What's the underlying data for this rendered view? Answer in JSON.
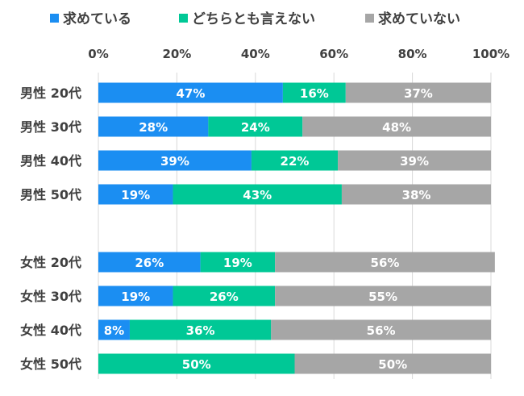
{
  "chart_data": {
    "type": "bar",
    "orientation": "horizontal",
    "stacked": true,
    "percent_stacked": true,
    "legend_position": "top",
    "grid": true,
    "xlim": [
      0,
      100
    ],
    "x_ticks": [
      "0%",
      "20%",
      "40%",
      "60%",
      "80%",
      "100%"
    ],
    "categories": [
      "男性 20代",
      "男性 30代",
      "男性 40代",
      "男性 50代",
      "",
      "女性 20代",
      "女性 30代",
      "女性 40代",
      "女性 50代"
    ],
    "series": [
      {
        "name": "求めている",
        "color": "#1b8ef2",
        "values": [
          47,
          28,
          39,
          19,
          null,
          26,
          19,
          8,
          0
        ]
      },
      {
        "name": "どちらとも言えない",
        "color": "#00c896",
        "values": [
          16,
          24,
          22,
          43,
          null,
          19,
          26,
          36,
          50
        ]
      },
      {
        "name": "求めていない",
        "color": "#a6a6a6",
        "values": [
          37,
          48,
          39,
          38,
          null,
          56,
          55,
          56,
          50
        ]
      }
    ],
    "labels": [
      [
        "47%",
        "28%",
        "39%",
        "19%",
        "",
        "26%",
        "19%",
        "8%",
        ""
      ],
      [
        "16%",
        "24%",
        "22%",
        "43%",
        "",
        "19%",
        "26%",
        "36%",
        "50%"
      ],
      [
        "37%",
        "48%",
        "39%",
        "38%",
        "",
        "56%",
        "55%",
        "56%",
        "50%"
      ]
    ]
  }
}
